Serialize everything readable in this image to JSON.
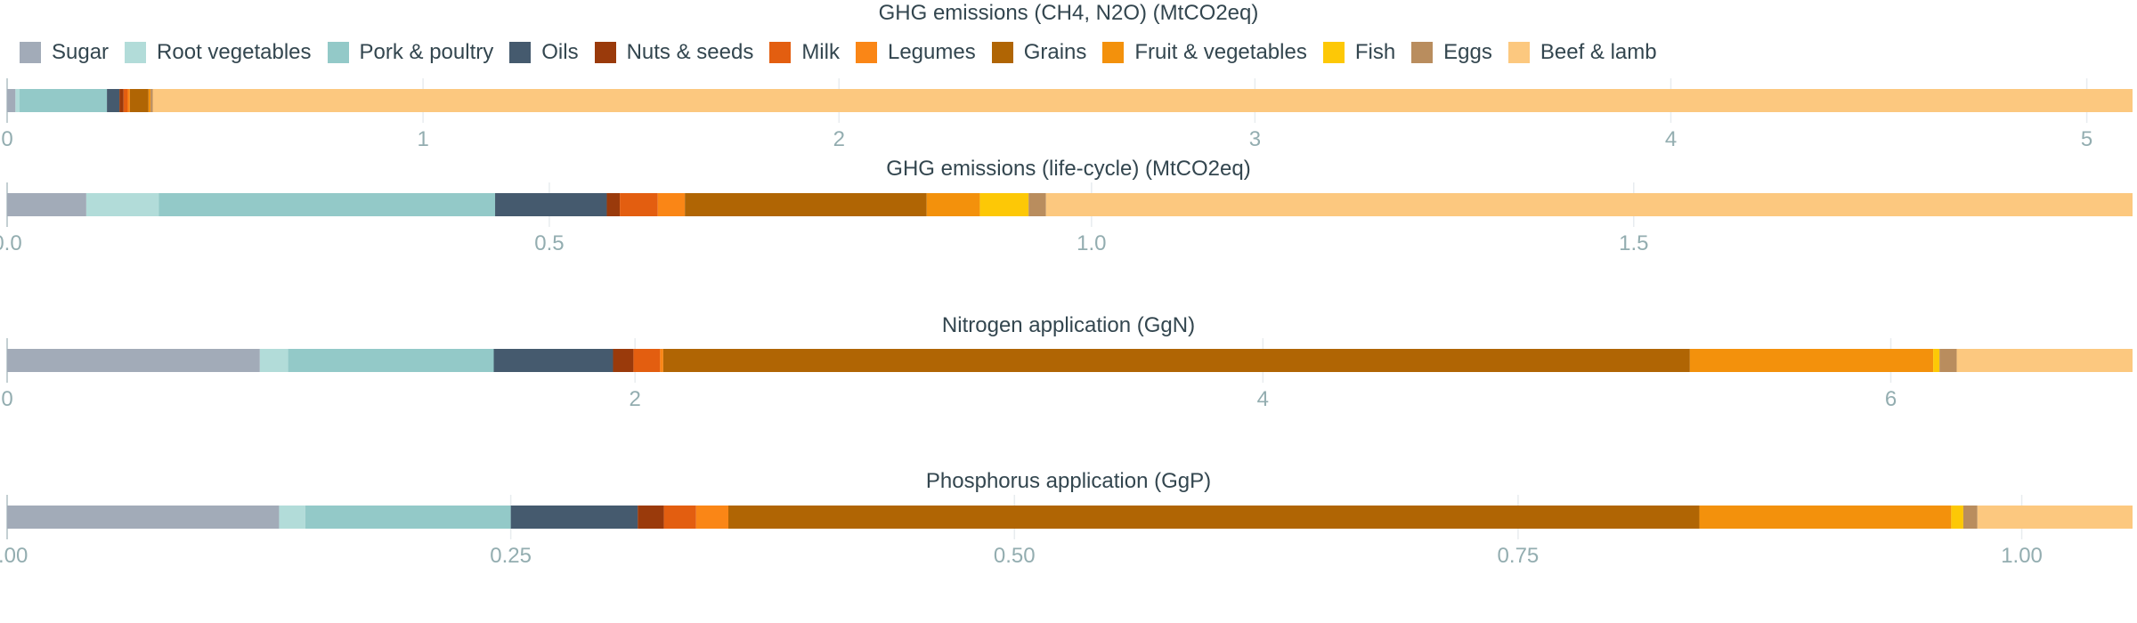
{
  "legend": [
    {
      "name": "Sugar",
      "color": "#a2abb8"
    },
    {
      "name": "Root vegetables",
      "color": "#b2dcd9"
    },
    {
      "name": "Pork & poultry",
      "color": "#93c9c8"
    },
    {
      "name": "Oils",
      "color": "#455a6e"
    },
    {
      "name": "Nuts & seeds",
      "color": "#9a3a0b"
    },
    {
      "name": "Milk",
      "color": "#e35e10"
    },
    {
      "name": "Legumes",
      "color": "#fa8616"
    },
    {
      "name": "Grains",
      "color": "#b06504"
    },
    {
      "name": "Fruit & vegetables",
      "color": "#f3910c"
    },
    {
      "name": "Fish",
      "color": "#fdc806"
    },
    {
      "name": "Eggs",
      "color": "#b98d5e"
    },
    {
      "name": "Beef & lamb",
      "color": "#fcc87f"
    }
  ],
  "chart_data": [
    {
      "type": "bar",
      "orientation": "horizontal",
      "stacked": true,
      "title": "GHG emissions (CH4, N2O) (MtCO2eq)",
      "xlim": [
        0,
        5.11
      ],
      "ticks": [
        0,
        1,
        2,
        3,
        4,
        5
      ],
      "tick_labels": [
        "0",
        "1",
        "2",
        "3",
        "4",
        "5"
      ],
      "grid": true,
      "series": [
        {
          "name": "Sugar",
          "value": 0.02
        },
        {
          "name": "Root vegetables",
          "value": 0.01
        },
        {
          "name": "Pork & poultry",
          "value": 0.21
        },
        {
          "name": "Oils",
          "value": 0.03
        },
        {
          "name": "Nuts & seeds",
          "value": 0.01
        },
        {
          "name": "Milk",
          "value": 0.01
        },
        {
          "name": "Legumes",
          "value": 0.005
        },
        {
          "name": "Grains",
          "value": 0.045
        },
        {
          "name": "Fruit & vegetables",
          "value": 0.005
        },
        {
          "name": "Fish",
          "value": 0.0
        },
        {
          "name": "Eggs",
          "value": 0.005
        },
        {
          "name": "Beef & lamb",
          "value": 4.76
        }
      ]
    },
    {
      "type": "bar",
      "orientation": "horizontal",
      "stacked": true,
      "title": "GHG emissions (life-cycle) (MtCO2eq)",
      "xlim": [
        0,
        1.96
      ],
      "ticks": [
        0,
        0.5,
        1.0,
        1.5
      ],
      "tick_labels": [
        "0.0",
        "0.5",
        "1.0",
        "1.5"
      ],
      "grid": true,
      "series": [
        {
          "name": "Sugar",
          "value": 0.073
        },
        {
          "name": "Root vegetables",
          "value": 0.067
        },
        {
          "name": "Pork & poultry",
          "value": 0.31
        },
        {
          "name": "Oils",
          "value": 0.103
        },
        {
          "name": "Nuts & seeds",
          "value": 0.012
        },
        {
          "name": "Milk",
          "value": 0.035
        },
        {
          "name": "Legumes",
          "value": 0.025
        },
        {
          "name": "Grains",
          "value": 0.223
        },
        {
          "name": "Fruit & vegetables",
          "value": 0.049
        },
        {
          "name": "Fish",
          "value": 0.045
        },
        {
          "name": "Eggs",
          "value": 0.016
        },
        {
          "name": "Beef & lamb",
          "value": 1.002
        }
      ]
    },
    {
      "type": "bar",
      "orientation": "horizontal",
      "stacked": true,
      "title": "Nitrogen application (GgN)",
      "xlim": [
        0,
        6.77
      ],
      "ticks": [
        0,
        2,
        4,
        6
      ],
      "tick_labels": [
        "0",
        "2",
        "4",
        "6"
      ],
      "grid": true,
      "series": [
        {
          "name": "Sugar",
          "value": 0.805
        },
        {
          "name": "Root vegetables",
          "value": 0.09
        },
        {
          "name": "Pork & poultry",
          "value": 0.655
        },
        {
          "name": "Oils",
          "value": 0.38
        },
        {
          "name": "Nuts & seeds",
          "value": 0.065
        },
        {
          "name": "Milk",
          "value": 0.085
        },
        {
          "name": "Legumes",
          "value": 0.01
        },
        {
          "name": "Grains",
          "value": 3.27
        },
        {
          "name": "Fruit & vegetables",
          "value": 0.775
        },
        {
          "name": "Fish",
          "value": 0.02
        },
        {
          "name": "Eggs",
          "value": 0.055
        },
        {
          "name": "Beef & lamb",
          "value": 0.56
        }
      ]
    },
    {
      "type": "bar",
      "orientation": "horizontal",
      "stacked": true,
      "title": "Phosphorus application (GgP)",
      "xlim": [
        0,
        1.055
      ],
      "ticks": [
        0,
        0.25,
        0.5,
        0.75,
        1.0
      ],
      "tick_labels": [
        "0.00",
        "0.25",
        "0.50",
        "0.75",
        "1.00"
      ],
      "grid": true,
      "series": [
        {
          "name": "Sugar",
          "value": 0.135
        },
        {
          "name": "Root vegetables",
          "value": 0.013
        },
        {
          "name": "Pork & poultry",
          "value": 0.102
        },
        {
          "name": "Oils",
          "value": 0.063
        },
        {
          "name": "Nuts & seeds",
          "value": 0.013
        },
        {
          "name": "Milk",
          "value": 0.016
        },
        {
          "name": "Legumes",
          "value": 0.016
        },
        {
          "name": "Grains",
          "value": 0.482
        },
        {
          "name": "Fruit & vegetables",
          "value": 0.125
        },
        {
          "name": "Fish",
          "value": 0.006
        },
        {
          "name": "Eggs",
          "value": 0.007
        },
        {
          "name": "Beef & lamb",
          "value": 0.077
        }
      ]
    }
  ]
}
